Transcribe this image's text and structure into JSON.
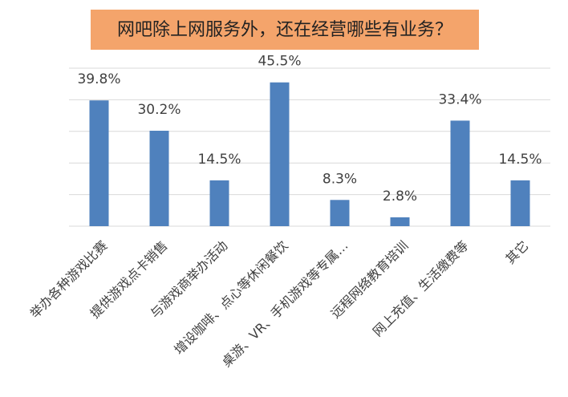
{
  "chart_data": {
    "type": "bar",
    "title": "网吧除上网服务外，还在经营哪些有业务？",
    "categories": [
      "举办各种游戏比赛",
      "提供游戏点卡销售",
      "与游戏商举办活动",
      "增设咖啡、点心等休闲餐饮",
      "桌游、VR、手机游戏等专属…",
      "远程网络教育培训",
      "网上充值、生活缴费等",
      "其它"
    ],
    "values": [
      39.8,
      30.2,
      14.5,
      45.5,
      8.3,
      2.8,
      33.4,
      14.5
    ],
    "value_labels": [
      "39.8%",
      "30.2%",
      "14.5%",
      "45.5%",
      "8.3%",
      "2.8%",
      "33.4%",
      "14.5%"
    ],
    "color": "#4f81bd",
    "ylim": [
      0,
      50
    ],
    "yticks": [
      0,
      10,
      20,
      30,
      40,
      50
    ],
    "grid": true
  }
}
